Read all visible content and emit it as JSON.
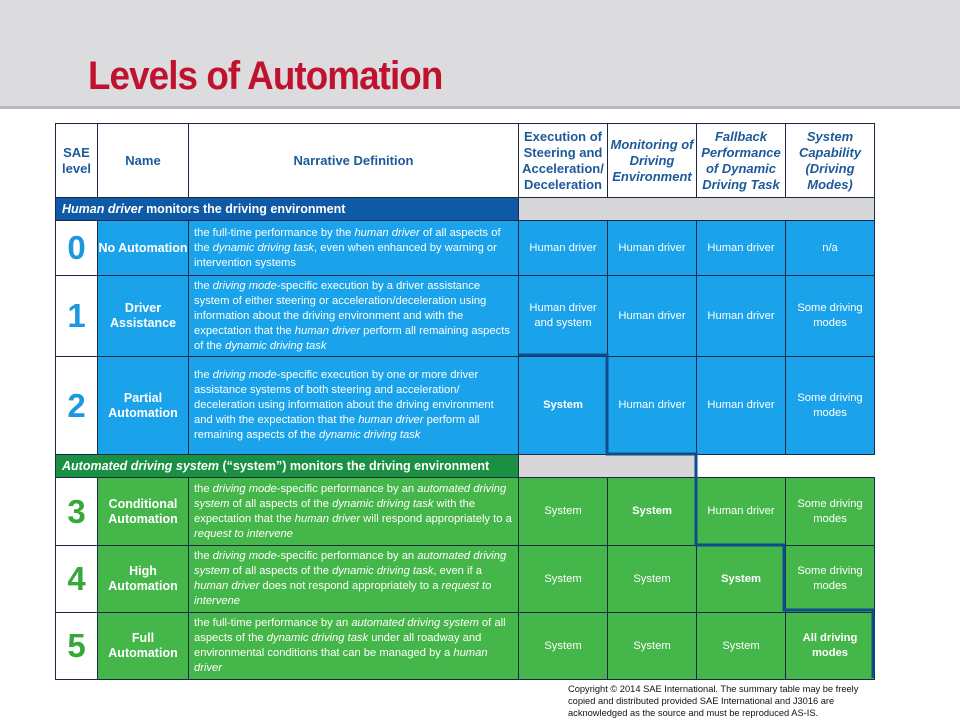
{
  "slide": {
    "title": "Levels of Automation"
  },
  "table": {
    "headers": {
      "sae_level": "SAE level",
      "name": "Name",
      "narrative": "Narrative Definition",
      "execution": "Execution of Steering and Acceleration/ Deceleration",
      "monitoring": "Monitoring of Driving Environment",
      "fallback": "Fallback Performance of Dynamic Driving Task",
      "capability": "System Capability (Driving Modes)"
    },
    "section_human": {
      "lead": "Human driver",
      "rest": " monitors the driving environment"
    },
    "section_system": {
      "lead": "Automated driving system",
      "rest": " (“system”) monitors the driving environment"
    },
    "rows": [
      {
        "level": "0",
        "name": "No Automation",
        "definition": "the full-time performance by the human driver of all aspects of the dynamic driving task, even when enhanced by warning or intervention systems",
        "execution": "Human driver",
        "monitoring": "Human driver",
        "fallback": "Human driver",
        "capability": "n/a"
      },
      {
        "level": "1",
        "name": "Driver Assistance",
        "definition": "the driving mode-specific execution by a driver assistance system of either steering or acceleration/deceleration using information about the driving environment and with the expectation that the human driver perform all remaining aspects of the dynamic driving task",
        "execution": "Human driver and system",
        "monitoring": "Human driver",
        "fallback": "Human driver",
        "capability": "Some driving modes"
      },
      {
        "level": "2",
        "name": "Partial Automation",
        "definition": "the driving mode-specific execution by one or more driver assistance systems of both steering and acceleration/ deceleration using information about the driving environment and with the expectation that the human driver perform all remaining aspects of the dynamic driving task",
        "execution": "System",
        "monitoring": "Human driver",
        "fallback": "Human driver",
        "capability": "Some driving modes"
      },
      {
        "level": "3",
        "name": "Conditional Automation",
        "definition": "the driving mode-specific performance by an automated driving system of all aspects of the dynamic driving task with the expectation that the human driver will respond appropriately to a request to intervene",
        "execution": "System",
        "monitoring": "System",
        "fallback": "Human driver",
        "capability": "Some driving modes"
      },
      {
        "level": "4",
        "name": "High Automation",
        "definition": "the driving mode-specific performance by an automated driving system of all aspects of the dynamic driving task, even if a human driver does not respond appropriately to a request to intervene",
        "execution": "System",
        "monitoring": "System",
        "fallback": "System",
        "capability": "Some driving modes"
      },
      {
        "level": "5",
        "name": "Full Automation",
        "definition": "the full-time performance by an automated driving system of all aspects of the dynamic driving task under all roadway and environmental conditions that can be managed by a human driver",
        "execution": "System",
        "monitoring": "System",
        "fallback": "System",
        "capability": "All driving modes"
      }
    ]
  },
  "footer": {
    "copyright": "Copyright © 2014 SAE International. The summary table may be freely copied and distributed provided SAE International and J3016 are acknowledged as the source and must be reproduced AS-IS."
  },
  "colors": {
    "title": "#c0112e",
    "header_text": "#1d5a99",
    "human_band": "#0e5aa7",
    "system_band": "#1a9142",
    "blue_cells": "#1aa3ea",
    "green_cells": "#45b649",
    "blue_numbers": "#1c98e1",
    "green_numbers": "#37a83a",
    "stair_line": "#0f4c8c"
  }
}
